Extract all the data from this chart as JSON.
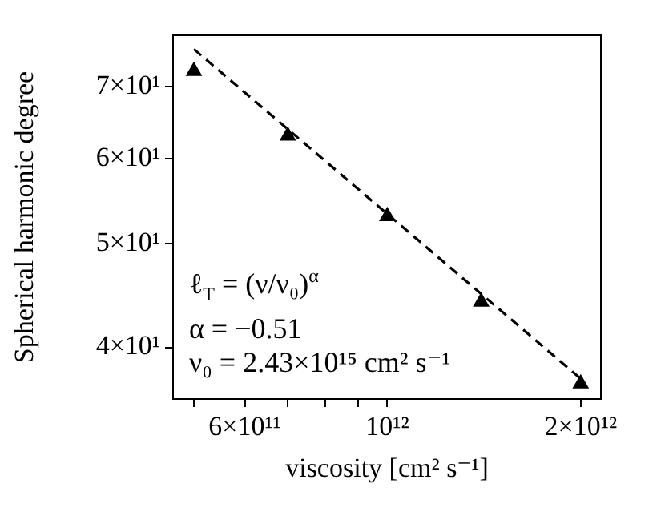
{
  "chart_data": {
    "type": "scatter",
    "xlabel": "viscosity [cm² s⁻¹]",
    "ylabel": "Spherical harmonic degree",
    "log": "xy",
    "grid": false,
    "legend": false,
    "marker": "triangle",
    "xlim": [
      464000000000.0,
      2150000000000.0
    ],
    "ylim": [
      35.8,
      78.2
    ],
    "xticks": [
      {
        "value": 500000000000.0,
        "label": null
      },
      {
        "value": 600000000000.0,
        "label": "6×10¹¹"
      },
      {
        "value": 700000000000.0,
        "label": null
      },
      {
        "value": 800000000000.0,
        "label": null
      },
      {
        "value": 900000000000.0,
        "label": null
      },
      {
        "value": 1000000000000.0,
        "label": "10¹²"
      },
      {
        "value": 2000000000000.0,
        "label": "2×10¹²"
      }
    ],
    "yticks": [
      {
        "value": 40,
        "label": "4×10¹"
      },
      {
        "value": 50,
        "label": "5×10¹"
      },
      {
        "value": 60,
        "label": "6×10¹"
      },
      {
        "value": 70,
        "label": "7×10¹"
      }
    ],
    "annotations": [
      "ℓ$_{T}$ = (ν/ν₀)$^{α}$",
      "α = −0.51",
      "ν₀ = 2.43×10¹⁵ cm² s⁻¹"
    ],
    "series": [
      {
        "type": "scatter",
        "color": "#000000",
        "x": [
          500000000000.0,
          700000000000.0,
          1000000000000.0,
          1400000000000.0,
          2000000000000.0
        ],
        "values": [
          72.4,
          63.0,
          53.0,
          44.1,
          37.0
        ]
      },
      {
        "type": "line",
        "color": "#000000",
        "marker": "none",
        "line_style": "dashed",
        "x": [
          500000000000.0,
          2000000000000.0
        ],
        "values": [
          75.9,
          37.4
        ]
      }
    ]
  }
}
